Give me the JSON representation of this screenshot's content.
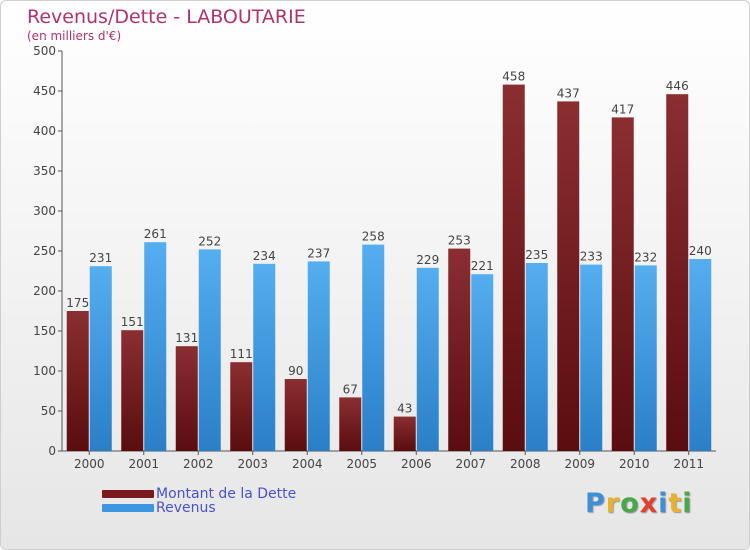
{
  "title": "Revenus/Dette - LABOUTARIE",
  "subtitle": "(en milliers d'€)",
  "logo": {
    "letters": [
      "P",
      "r",
      "o",
      "x",
      "i",
      "t",
      "i"
    ],
    "colors": [
      "#3d8fd6",
      "#e8b22e",
      "#4aa84a",
      "#e0402f",
      "#3d8fd6",
      "#e8b22e",
      "#4aa84a"
    ]
  },
  "colors": {
    "debt": "#7a1a1c",
    "revenue": "#3d97e0"
  },
  "chart_data": {
    "type": "bar",
    "title": "Revenus/Dette - LABOUTARIE",
    "ylabel": "(en milliers d'€)",
    "ylim": [
      0,
      500
    ],
    "yticks": [
      0,
      50,
      100,
      150,
      200,
      250,
      300,
      350,
      400,
      450,
      500
    ],
    "categories": [
      "2000",
      "2001",
      "2002",
      "2003",
      "2004",
      "2005",
      "2006",
      "2007",
      "2008",
      "2009",
      "2010",
      "2011"
    ],
    "series": [
      {
        "name": "Montant de la Dette",
        "values": [
          175,
          151,
          131,
          111,
          90,
          67,
          43,
          253,
          458,
          437,
          417,
          446
        ]
      },
      {
        "name": "Revenus",
        "values": [
          231,
          261,
          252,
          234,
          237,
          258,
          229,
          221,
          235,
          233,
          232,
          240
        ]
      }
    ],
    "legend": "bottom-left",
    "grid": false
  }
}
